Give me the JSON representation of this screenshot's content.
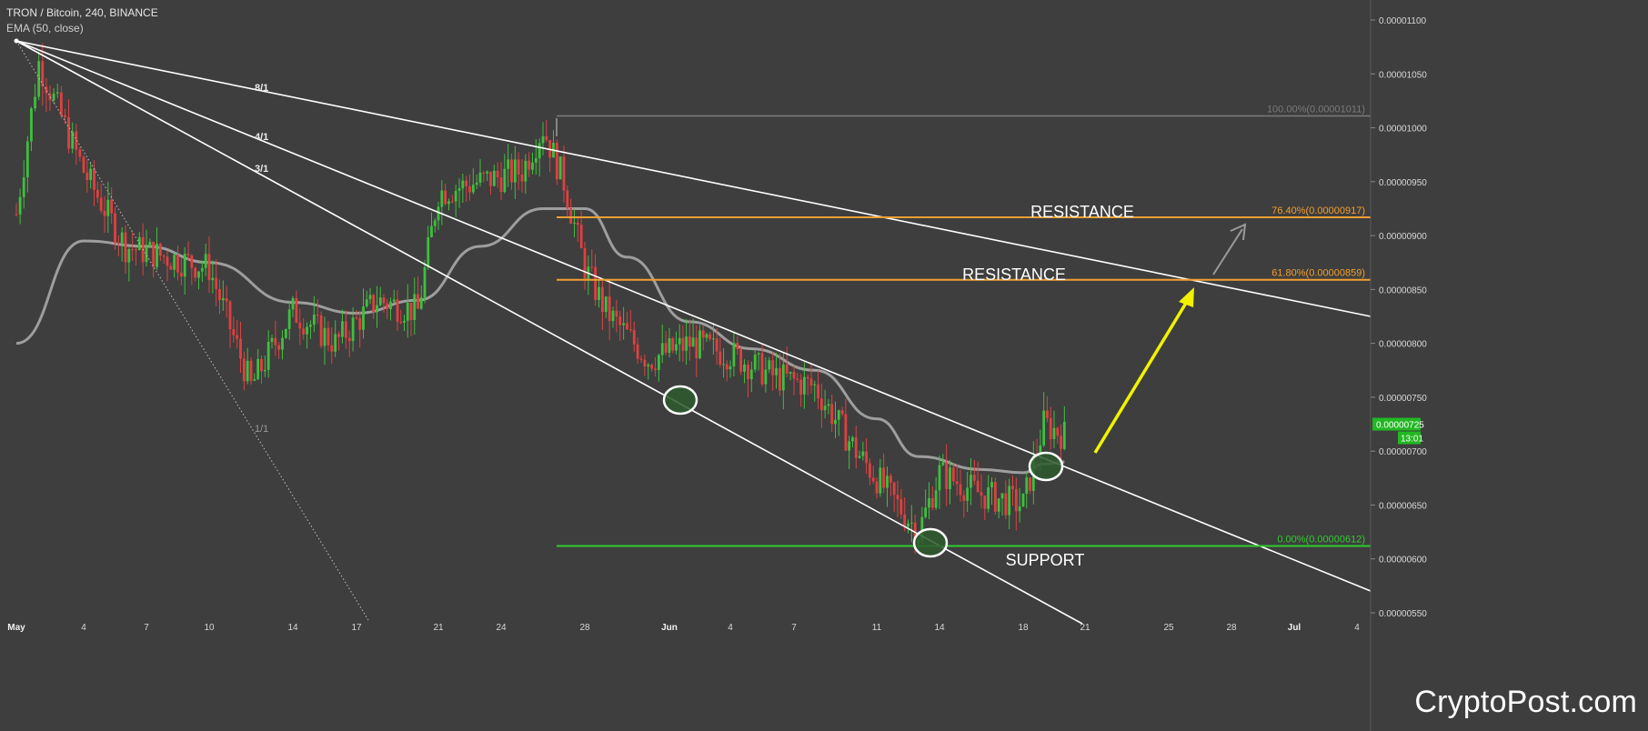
{
  "header": {
    "symbol": "TRON / Bitcoin, 240, BINANCE",
    "indicator": "EMA (50, close)"
  },
  "watermark": "CryptoPost.com",
  "colors": {
    "background": "#3e3e3e",
    "candle_up": "#3fbf3f",
    "candle_down": "#e04040",
    "ema": "#a9a9a9",
    "fib_100": "#7a7a7a",
    "fib_764": "#f0a030",
    "fib_618": "#f0a030",
    "fib_0": "#2ecc2e",
    "fan_lines": "#ffffff",
    "projection_arrow": "#f2f200",
    "secondary_arrow": "#9a9a9a",
    "price_badge": "#22b822",
    "circle_fill": "#2e5a2e"
  },
  "chart_data": {
    "type": "line",
    "title": "TRON / Bitcoin, 240, BINANCE",
    "xlabel": "",
    "ylabel": "",
    "x_tick_labels": [
      "May",
      "4",
      "7",
      "10",
      "14",
      "17",
      "21",
      "24",
      "28",
      "Jun",
      "4",
      "7",
      "11",
      "14",
      "18",
      "21",
      "25",
      "28",
      "Jul",
      "4"
    ],
    "y_tick_labels": [
      "0.00001100",
      "0.00001050",
      "0.00001000",
      "0.00000950",
      "0.00000900",
      "0.00000850",
      "0.00000800",
      "0.00000750",
      "0.00000700",
      "0.00000650",
      "0.00000600",
      "0.00000550"
    ],
    "ylim": [
      5.48e-06,
      1.117e-05
    ],
    "grid": false,
    "price_series": {
      "name": "TRX/BTC",
      "x": [
        "May 1",
        "May 2",
        "May 4",
        "May 6",
        "May 8",
        "May 10",
        "May 12",
        "May 14",
        "May 16",
        "May 18",
        "May 20",
        "May 21",
        "May 23",
        "May 25",
        "May 26",
        "May 27",
        "May 28",
        "May 29",
        "May 31",
        "Jun 2",
        "Jun 4",
        "Jun 6",
        "Jun 8",
        "Jun 10",
        "Jun 12",
        "Jun 13",
        "Jun 14",
        "Jun 16",
        "Jun 18",
        "Jun 19",
        "Jun 20"
      ],
      "values": [
        9.2e-06,
        1.06e-05,
        9.6e-06,
        8.9e-06,
        8.8e-06,
        8.7e-06,
        7.6e-06,
        8.3e-06,
        8e-06,
        8.4e-06,
        8.3e-06,
        9.4e-06,
        9.5e-06,
        9.6e-06,
        1e-05,
        9.5e-06,
        8.7e-06,
        8.3e-06,
        7.85e-06,
        8e-06,
        7.9e-06,
        7.7e-06,
        7.6e-06,
        7e-06,
        6.5e-06,
        6.25e-06,
        6.8e-06,
        6.6e-06,
        6.5e-06,
        7.25e-06,
        7.15e-06
      ]
    },
    "ema_series": {
      "name": "EMA (50, close)",
      "x": [
        "May 1",
        "May 4",
        "May 7",
        "May 10",
        "May 14",
        "May 17",
        "May 20",
        "May 23",
        "May 26",
        "May 28",
        "May 30",
        "Jun 2",
        "Jun 5",
        "Jun 8",
        "Jun 11",
        "Jun 13",
        "Jun 16",
        "Jun 18",
        "Jun 19",
        "Jun 20"
      ],
      "values": [
        8e-06,
        8.95e-06,
        8.9e-06,
        8.75e-06,
        8.38e-06,
        8.28e-06,
        8.4e-06,
        8.9e-06,
        9.25e-06,
        9.25e-06,
        8.8e-06,
        8.2e-06,
        7.95e-06,
        7.75e-06,
        7.3e-06,
        6.95e-06,
        6.83e-06,
        6.8e-06,
        6.88e-06,
        6.9e-06
      ]
    },
    "fib_levels": [
      {
        "label": "100.00%(0.00001011)",
        "value": 1.011e-05
      },
      {
        "label": "76.40%(0.00000917)",
        "value": 9.17e-06
      },
      {
        "label": "61.80%(0.00000859)",
        "value": 8.59e-06
      },
      {
        "label": "0.00%(0.00000612)",
        "value": 6.12e-06
      }
    ],
    "fan_labels": [
      "8/1",
      "4/1",
      "3/1",
      "1/1"
    ],
    "annotations": [
      "RESISTANCE",
      "RESISTANCE",
      "SUPPORT"
    ],
    "current_price": "0.00000725",
    "countdown": "13:01"
  }
}
